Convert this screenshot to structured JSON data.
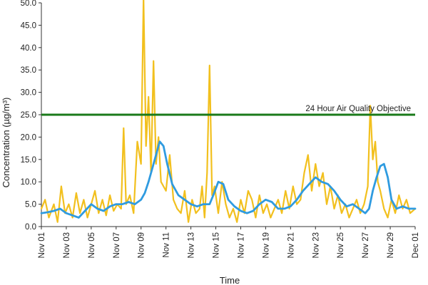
{
  "chart_data": {
    "type": "line",
    "xlabel": "Time",
    "ylabel": "Concentration (µg/m³)",
    "ylim": [
      0,
      50
    ],
    "yticks": [
      "0.0",
      "5.0",
      "10.0",
      "15.0",
      "20.0",
      "25.0",
      "30.0",
      "35.0",
      "40.0",
      "45.0",
      "50.0"
    ],
    "xlim": [
      "Nov 01",
      "Dec 01"
    ],
    "xticks": [
      "Nov 01",
      "Nov 03",
      "Nov 05",
      "Nov 07",
      "Nov 09",
      "Nov 11",
      "Nov 13",
      "Nov 15",
      "Nov 17",
      "Nov 19",
      "Nov 21",
      "Nov 23",
      "Nov 25",
      "Nov 27",
      "Nov 29",
      "Dec 01"
    ],
    "grid": false,
    "reference_line": {
      "label": "24 Hour Air Quality Objective",
      "value": 25.0,
      "color": "#1a7a1a"
    },
    "series": [
      {
        "color": "#f2c01e",
        "x": [
          0,
          0.3,
          0.6,
          1.0,
          1.3,
          1.6,
          1.9,
          2.2,
          2.5,
          2.8,
          3.1,
          3.4,
          3.7,
          4.0,
          4.3,
          4.6,
          4.9,
          5.2,
          5.5,
          5.8,
          6.1,
          6.4,
          6.6,
          6.8,
          7.1,
          7.4,
          7.7,
          8.0,
          8.2,
          8.4,
          8.6,
          8.8,
          9.0,
          9.2,
          9.4,
          9.6,
          9.8,
          10.0,
          10.3,
          10.6,
          10.9,
          11.2,
          11.5,
          11.8,
          12.1,
          12.4,
          12.7,
          12.9,
          13.1,
          13.3,
          13.5,
          13.7,
          13.9,
          14.2,
          14.5,
          14.8,
          15.1,
          15.4,
          15.7,
          16.0,
          16.3,
          16.6,
          16.9,
          17.2,
          17.5,
          17.8,
          18.1,
          18.4,
          18.7,
          19.0,
          19.3,
          19.6,
          19.9,
          20.2,
          20.5,
          20.8,
          21.1,
          21.4,
          21.7,
          22.0,
          22.3,
          22.6,
          22.9,
          23.2,
          23.5,
          23.8,
          24.1,
          24.4,
          24.7,
          25.0,
          25.3,
          25.6,
          25.9,
          26.2,
          26.4,
          26.6,
          26.8,
          27.0,
          27.2,
          27.5,
          27.8,
          28.1,
          28.4,
          28.7,
          29.0,
          29.3,
          29.6,
          30.0
        ],
        "values": [
          4.0,
          6.0,
          2.0,
          5.0,
          1.0,
          9.0,
          3.0,
          5.0,
          2.0,
          7.5,
          3.0,
          6.0,
          2.0,
          5.0,
          8.0,
          3.0,
          6.0,
          2.5,
          7.0,
          3.5,
          5.0,
          4.0,
          22.0,
          5.0,
          7.0,
          3.0,
          19.0,
          14.0,
          51.0,
          18.0,
          29.0,
          12.0,
          37.0,
          14.0,
          20.0,
          10.0,
          9.0,
          8.0,
          16.0,
          6.0,
          4.0,
          3.0,
          8.0,
          1.0,
          6.0,
          3.0,
          4.0,
          9.0,
          2.0,
          12.0,
          36.0,
          7.0,
          9.0,
          3.0,
          10.0,
          5.0,
          2.0,
          4.0,
          1.0,
          6.0,
          3.0,
          8.0,
          6.0,
          2.0,
          7.0,
          3.0,
          5.0,
          2.0,
          4.0,
          6.0,
          3.0,
          8.0,
          4.0,
          9.0,
          5.0,
          6.0,
          12.0,
          16.0,
          8.0,
          14.0,
          9.0,
          12.0,
          5.0,
          9.0,
          4.0,
          7.0,
          3.0,
          5.0,
          2.0,
          4.0,
          6.0,
          3.0,
          5.0,
          9.0,
          27.0,
          15.0,
          19.0,
          10.0,
          8.0,
          4.0,
          2.0,
          6.0,
          3.0,
          7.0,
          4.0,
          6.0,
          3.0,
          4.0
        ]
      },
      {
        "color": "#2f9be0",
        "x": [
          0,
          0.5,
          1.0,
          1.5,
          2.0,
          2.5,
          3.0,
          3.5,
          4.0,
          4.5,
          5.0,
          5.5,
          6.0,
          6.5,
          7.0,
          7.5,
          8.0,
          8.3,
          8.6,
          8.9,
          9.2,
          9.5,
          9.8,
          10.1,
          10.5,
          11.0,
          11.5,
          12.0,
          12.5,
          13.0,
          13.5,
          13.8,
          14.2,
          14.6,
          15.0,
          15.5,
          16.0,
          16.5,
          17.0,
          17.5,
          18.0,
          18.5,
          19.0,
          19.5,
          20.0,
          20.5,
          21.0,
          21.5,
          22.0,
          22.5,
          23.0,
          23.5,
          24.0,
          24.5,
          25.0,
          25.5,
          26.0,
          26.3,
          26.6,
          26.9,
          27.2,
          27.5,
          27.8,
          28.1,
          28.5,
          29.0,
          29.5,
          30.0
        ],
        "values": [
          3.0,
          3.2,
          3.5,
          4.0,
          3.0,
          2.5,
          2.0,
          3.5,
          5.0,
          4.0,
          3.5,
          4.5,
          5.0,
          5.0,
          5.5,
          5.0,
          6.0,
          7.5,
          10.0,
          13.0,
          16.0,
          19.0,
          18.0,
          14.0,
          9.5,
          7.0,
          6.0,
          5.0,
          4.5,
          5.0,
          5.0,
          7.0,
          10.0,
          9.5,
          6.0,
          4.5,
          3.5,
          3.0,
          3.5,
          5.0,
          6.0,
          5.5,
          4.0,
          4.0,
          4.5,
          6.0,
          8.0,
          9.5,
          11.0,
          10.0,
          9.5,
          8.0,
          6.0,
          4.5,
          5.0,
          4.0,
          3.0,
          4.0,
          8.0,
          11.0,
          13.5,
          14.0,
          11.0,
          6.0,
          4.0,
          4.5,
          4.0,
          4.0
        ]
      }
    ]
  }
}
